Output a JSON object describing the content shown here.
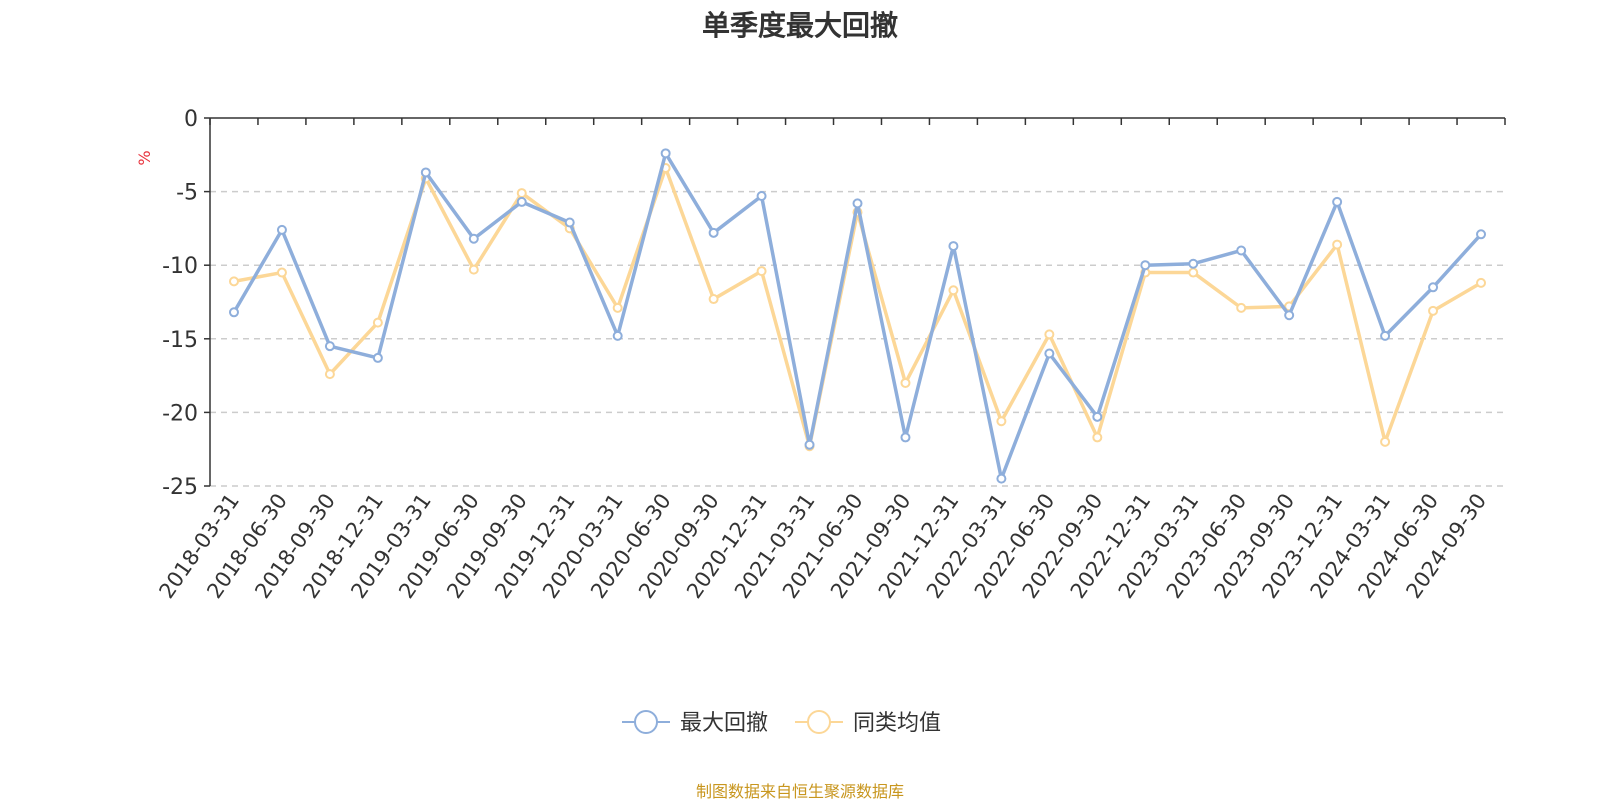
{
  "chart_data": {
    "type": "line",
    "title": "单季度最大回撤",
    "ylabel": "%",
    "xlabel": "",
    "ylim": [
      -25,
      0
    ],
    "yticks": [
      0,
      -5,
      -10,
      -15,
      -20,
      -25
    ],
    "grid": true,
    "legend_position": "bottom-center",
    "categories": [
      "2018-03-31",
      "2018-06-30",
      "2018-09-30",
      "2018-12-31",
      "2019-03-31",
      "2019-06-30",
      "2019-09-30",
      "2019-12-31",
      "2020-03-31",
      "2020-06-30",
      "2020-09-30",
      "2020-12-31",
      "2021-03-31",
      "2021-06-30",
      "2021-09-30",
      "2021-12-31",
      "2022-03-31",
      "2022-06-30",
      "2022-09-30",
      "2022-12-31",
      "2023-03-31",
      "2023-06-30",
      "2023-09-30",
      "2023-12-31",
      "2024-03-31",
      "2024-06-30",
      "2024-09-30"
    ],
    "series": [
      {
        "name": "最大回撤",
        "color": "#8eaedb",
        "values": [
          -13.2,
          -7.6,
          -15.5,
          -16.3,
          -3.7,
          -8.2,
          -5.7,
          -7.1,
          -14.8,
          -2.4,
          -7.8,
          -5.3,
          -22.2,
          -5.8,
          -21.7,
          -8.7,
          -24.5,
          -16.0,
          -20.3,
          -10.0,
          -9.9,
          -9.0,
          -13.4,
          -5.7,
          -14.8,
          -11.5,
          -7.9
        ]
      },
      {
        "name": "同类均值",
        "color": "#fcd797",
        "values": [
          -11.1,
          -10.5,
          -17.4,
          -13.9,
          -4.1,
          -10.3,
          -5.1,
          -7.5,
          -12.9,
          -3.4,
          -12.3,
          -10.4,
          -22.3,
          -6.4,
          -18.0,
          -11.7,
          -20.6,
          -14.7,
          -21.7,
          -10.5,
          -10.5,
          -12.9,
          -12.8,
          -8.6,
          -22.0,
          -13.1,
          -11.2
        ]
      }
    ]
  },
  "footer": "制图数据来自恒生聚源数据库"
}
